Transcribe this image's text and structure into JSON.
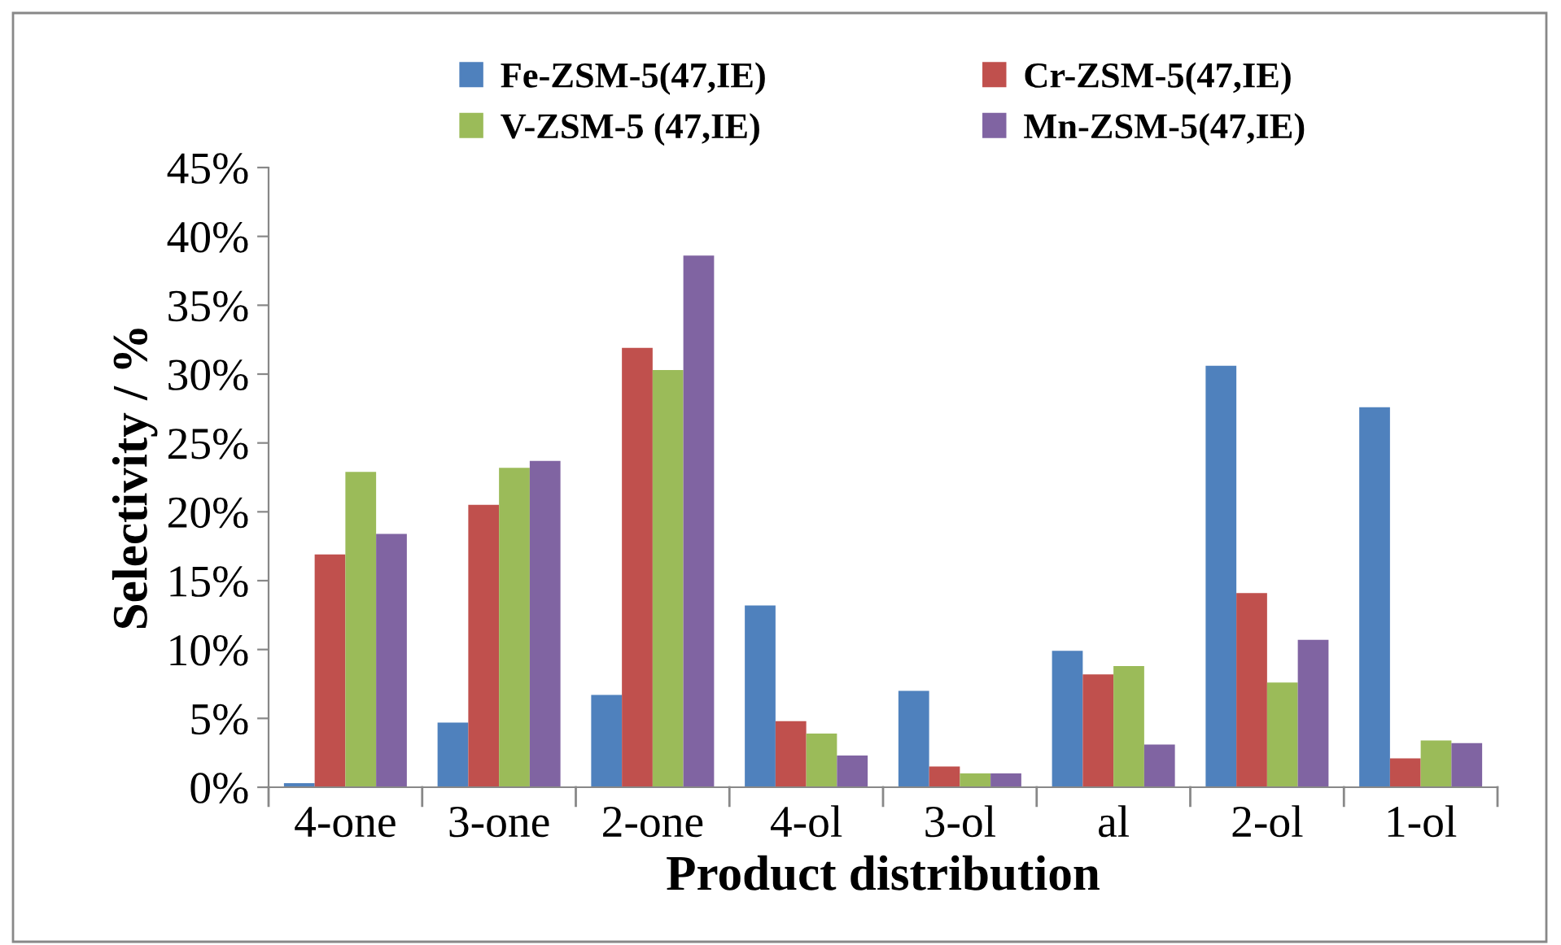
{
  "chart_data": {
    "type": "bar",
    "xlabel": "Product distribution",
    "ylabel": "Selectivity / %",
    "categories": [
      "4-one",
      "3-one",
      "2-one",
      "4-ol",
      "3-ol",
      "al",
      "2-ol",
      "1-ol"
    ],
    "series": [
      {
        "name": "Fe-ZSM-5(47,IE)",
        "color": "#4f81bd",
        "values": [
          0.3,
          4.7,
          6.7,
          13.2,
          7.0,
          9.9,
          30.6,
          27.6
        ]
      },
      {
        "name": "Cr-ZSM-5(47,IE)",
        "color": "#c0504d",
        "values": [
          16.9,
          20.5,
          31.9,
          4.8,
          1.5,
          8.2,
          14.1,
          2.1
        ]
      },
      {
        "name": "V-ZSM-5 (47,IE)",
        "color": "#9bbb59",
        "values": [
          22.9,
          23.2,
          30.3,
          3.9,
          1.0,
          8.8,
          7.6,
          3.4
        ]
      },
      {
        "name": "Mn-ZSM-5(47,IE)",
        "color": "#8064a2",
        "values": [
          18.4,
          23.7,
          38.6,
          2.3,
          1.0,
          3.1,
          10.7,
          3.2
        ]
      }
    ],
    "ylim": [
      0,
      45
    ],
    "yticks": [
      {
        "value": 0,
        "label": "0%"
      },
      {
        "value": 5,
        "label": "5%"
      },
      {
        "value": 10,
        "label": "10%"
      },
      {
        "value": 15,
        "label": "15%"
      },
      {
        "value": 20,
        "label": "20%"
      },
      {
        "value": 25,
        "label": "25%"
      },
      {
        "value": 30,
        "label": "30%"
      },
      {
        "value": 35,
        "label": "35%"
      },
      {
        "value": 40,
        "label": "40%"
      },
      {
        "value": 45,
        "label": "45%"
      }
    ],
    "grid": false,
    "legend": "top"
  }
}
